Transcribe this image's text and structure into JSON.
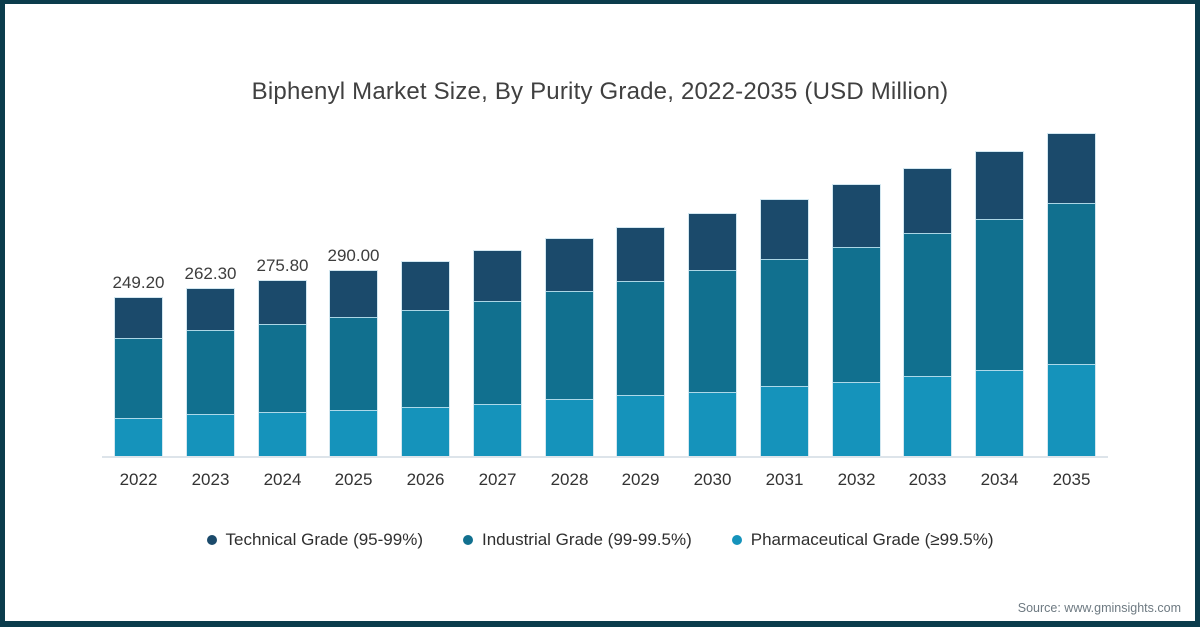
{
  "chart": {
    "title": "Biphenyl Market Size, By Purity Grade, 2022-2035 (USD Million)"
  },
  "chart_data": {
    "type": "bar",
    "stacked": true,
    "title": "Biphenyl Market Size, By Purity Grade, 2022-2035 (USD Million)",
    "unit": "USD Million",
    "categories": [
      "2022",
      "2023",
      "2024",
      "2025",
      "2026",
      "2027",
      "2028",
      "2029",
      "2030",
      "2031",
      "2032",
      "2033",
      "2034",
      "2035"
    ],
    "series": [
      {
        "name": "Technical Grade (95-99%)",
        "color": "#1b4a6b",
        "stack_position": "top",
        "values": [
          62.5,
          64.5,
          68.0,
          71.5,
          75.5,
          78.0,
          82.0,
          83.5,
          87.5,
          92.5,
          97.5,
          100.5,
          104.5,
          108.5
        ]
      },
      {
        "name": "Industrial Grade (99-99.5%)",
        "color": "#11708f",
        "stack_position": "middle",
        "values": [
          125.5,
          131.0,
          137.5,
          145.0,
          151.5,
          161.0,
          168.5,
          178.5,
          191.5,
          199.5,
          211.0,
          224.0,
          237.0,
          251.5
        ]
      },
      {
        "name": "Pharmaceutical Grade (≥99.5%)",
        "color": "#1593bb",
        "stack_position": "bottom",
        "values": [
          61.2,
          66.8,
          70.3,
          73.5,
          77.8,
          83.4,
          90.6,
          96.8,
          101.6,
          110.4,
          118.0,
          126.9,
          135.9,
          145.5
        ]
      }
    ],
    "totals": [
      249.2,
      262.3,
      275.8,
      290.0,
      304.8,
      322.4,
      341.1,
      358.8,
      380.6,
      402.4,
      426.5,
      451.4,
      477.4,
      505.5
    ],
    "data_labels": [
      "249.20",
      "262.30",
      "275.80",
      "290.00",
      null,
      null,
      null,
      null,
      null,
      null,
      null,
      null,
      null,
      null
    ],
    "y_axis": "hidden",
    "grid": "off",
    "legend_position": "bottom"
  },
  "footer": {
    "source": "Source: www.gminsights.com"
  },
  "colors": {
    "frame": "#0b3c4c",
    "title_text": "#404040",
    "axis_line": "#dde4ea",
    "label_text": "#3d3d3d"
  }
}
